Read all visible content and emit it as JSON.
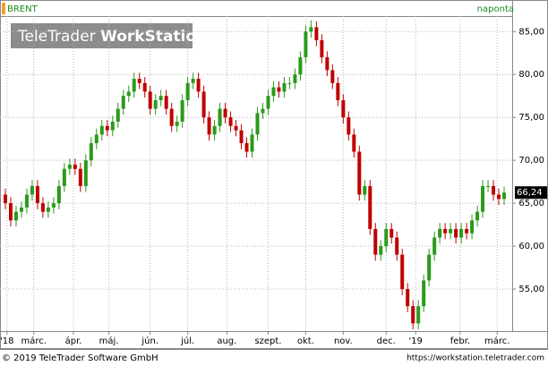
{
  "header": {
    "symbol": "BRENT",
    "interval": "naponta",
    "watermark_light": "TeleTrader",
    "watermark_bold": "WorkStation"
  },
  "footer": {
    "copyright": "© 2019 TeleTrader Software GmbH",
    "url": "https://workstation.teletrader.com"
  },
  "chart_data": {
    "type": "candlestick",
    "up_color": "#2a9a1a",
    "down_color": "#c00000",
    "grid": true,
    "ylim": [
      50.1,
      86.8
    ],
    "yticks": [
      {
        "value": 55,
        "label": "55,00"
      },
      {
        "value": 60,
        "label": "60,00"
      },
      {
        "value": 65,
        "label": "65,00"
      },
      {
        "value": 70,
        "label": "70,00"
      },
      {
        "value": 75,
        "label": "75,00"
      },
      {
        "value": 80,
        "label": "80,00"
      },
      {
        "value": 85,
        "label": "85,00"
      }
    ],
    "xlim": [
      -1,
      94.5
    ],
    "xticks": [
      {
        "value": 0.3,
        "label": "'18"
      },
      {
        "value": 5.3,
        "label": "márc."
      },
      {
        "value": 12.7,
        "label": "ápr."
      },
      {
        "value": 19.3,
        "label": "máj."
      },
      {
        "value": 27,
        "label": "jún."
      },
      {
        "value": 34,
        "label": "júl."
      },
      {
        "value": 41.3,
        "label": "aug."
      },
      {
        "value": 49,
        "label": "szept."
      },
      {
        "value": 56,
        "label": "okt."
      },
      {
        "value": 63,
        "label": "nov."
      },
      {
        "value": 71,
        "label": "dec."
      },
      {
        "value": 76.5,
        "label": "'19"
      },
      {
        "value": 84.8,
        "label": "febr."
      },
      {
        "value": 91.7,
        "label": "márc."
      }
    ],
    "open": [
      66,
      65,
      63,
      64,
      64.5,
      66,
      67,
      65,
      64,
      64.5,
      65,
      67,
      69,
      69.5,
      69,
      67,
      70,
      72,
      73,
      74,
      73.5,
      74.5,
      76,
      77.5,
      78,
      79.5,
      79,
      78,
      76,
      77,
      77.5,
      76,
      74,
      74.5,
      77,
      79,
      79.5,
      78,
      75,
      73,
      74,
      76,
      75,
      74,
      73.5,
      72,
      71,
      73,
      75.5,
      76,
      77.5,
      78.5,
      78,
      79,
      79,
      80,
      82,
      85,
      85.5,
      84,
      82,
      80.5,
      79,
      77,
      75,
      73,
      71,
      66,
      67,
      62,
      59,
      60,
      62,
      61,
      59,
      55,
      53,
      51,
      53,
      56,
      59,
      61,
      62,
      61.5,
      62,
      61,
      62,
      61.5,
      63,
      64,
      67,
      67,
      66,
      65.5
    ],
    "high": [
      66.7,
      65.7,
      64.7,
      65.2,
      66.7,
      67.7,
      67.7,
      65.7,
      65.2,
      65.7,
      67.7,
      69.7,
      70.2,
      70.2,
      69.7,
      70.7,
      72.7,
      73.7,
      74.7,
      74.7,
      75.2,
      76.7,
      78.2,
      78.7,
      80.2,
      80.2,
      79.7,
      78.7,
      77.7,
      78.2,
      78.2,
      76.7,
      75.2,
      77.7,
      79.7,
      80.2,
      80.2,
      78.7,
      75.7,
      74.7,
      76.7,
      76.7,
      75.7,
      74.7,
      74.2,
      72.7,
      73.7,
      76.2,
      76.7,
      78.2,
      79.2,
      79.2,
      79.7,
      79.7,
      80.7,
      82.7,
      85.7,
      86.3,
      86.2,
      84.7,
      82.7,
      81.2,
      79.7,
      77.7,
      75.7,
      73.7,
      71.7,
      67.7,
      67.7,
      62.7,
      60.7,
      62.7,
      62.7,
      61.7,
      59.7,
      55.7,
      53.7,
      53.7,
      56.7,
      59.7,
      61.7,
      62.7,
      62.7,
      62.7,
      62.7,
      62.7,
      62.7,
      63.7,
      64.7,
      67.7,
      67.7,
      67.7,
      66.7,
      66.94
    ],
    "low": [
      64.3,
      62.3,
      62.3,
      63.3,
      63.8,
      65.3,
      64.3,
      63.3,
      63.3,
      63.8,
      64.3,
      66.3,
      68.3,
      68.3,
      66.3,
      66.3,
      69.3,
      71.3,
      72.3,
      72.8,
      72.8,
      73.8,
      75.3,
      76.8,
      77.3,
      78.3,
      77.3,
      75.3,
      75.3,
      76.3,
      75.3,
      73.3,
      73.3,
      73.8,
      76.3,
      78.3,
      77.3,
      74.3,
      72.3,
      72.3,
      73.3,
      74.3,
      73.3,
      72.8,
      71.3,
      70.3,
      70.3,
      72.3,
      74.8,
      75.3,
      76.8,
      77.3,
      77.3,
      78.3,
      78.3,
      79.3,
      81.3,
      84.3,
      83.3,
      81.3,
      79.8,
      78.3,
      76.3,
      74.3,
      72.3,
      70.3,
      65.3,
      65.3,
      61.3,
      58.3,
      58.3,
      59.3,
      60.3,
      58.3,
      54.3,
      52.3,
      50.3,
      50.3,
      52.3,
      55.3,
      58.3,
      60.3,
      60.8,
      60.8,
      60.3,
      60.3,
      60.8,
      60.8,
      62.3,
      63.3,
      66.3,
      65.3,
      64.8,
      64.8
    ],
    "close": [
      65,
      63,
      64,
      64.5,
      66,
      67,
      65,
      64,
      64.5,
      65,
      67,
      69,
      69.5,
      69,
      67,
      70,
      72,
      73,
      74,
      73.5,
      74.5,
      76,
      77.5,
      78,
      79.5,
      79,
      78,
      76,
      77,
      77.5,
      76,
      74,
      74.5,
      77,
      79,
      79.5,
      78,
      75,
      73,
      74,
      76,
      75,
      74,
      73.5,
      72,
      71,
      73,
      75.5,
      76,
      77.5,
      78.5,
      78,
      79,
      79,
      80,
      82,
      85,
      85.5,
      84,
      82,
      80.5,
      79,
      77,
      75,
      73,
      71,
      66,
      67,
      62,
      59,
      60,
      62,
      61,
      59,
      55,
      53,
      51,
      53,
      56,
      59,
      61,
      62,
      61.5,
      62,
      61,
      62,
      61.5,
      63,
      64,
      67,
      67,
      66,
      65.5,
      66.24
    ],
    "last_price": {
      "value": 66.24,
      "label": "66,24"
    }
  }
}
